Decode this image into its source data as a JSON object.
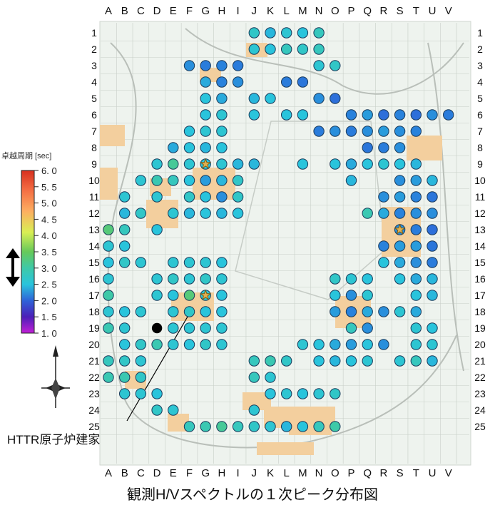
{
  "grid": {
    "columns": [
      "A",
      "B",
      "C",
      "D",
      "E",
      "F",
      "G",
      "H",
      "I",
      "J",
      "K",
      "L",
      "M",
      "N",
      "O",
      "P",
      "Q",
      "R",
      "S",
      "T",
      "U",
      "V"
    ],
    "rows": [
      "1",
      "2",
      "3",
      "4",
      "5",
      "6",
      "7",
      "8",
      "9",
      "10",
      "11",
      "12",
      "13",
      "14",
      "15",
      "16",
      "17",
      "18",
      "19",
      "20",
      "21",
      "22",
      "23",
      "24",
      "25"
    ]
  },
  "legend": {
    "title": "卓越周期 [sec]",
    "ticks": [
      "6. 0",
      "5. 5",
      "5. 0",
      "4. 5",
      "4. 0",
      "3. 5",
      "3. 0",
      "2. 5",
      "2. 0",
      "1. 5",
      "1. 0"
    ],
    "min": 1.0,
    "max": 6.0
  },
  "annotation": {
    "label": "HTTR原子炉建家"
  },
  "caption": "観測H/Vスペクトルの１次ピーク分布図",
  "colors": {
    "map_background": "#eef3ee",
    "grid_line": "#c8cfc8",
    "building": "#f3cf9e",
    "road": "#b9bfb9"
  },
  "icons": {
    "star": "star-icon",
    "compass": "north-arrow-icon",
    "range": "double-arrow-icon"
  },
  "chart_data": {
    "type": "scatter",
    "description_units": "grid column letter / row number; value = dominant period (sec)",
    "series": [
      {
        "values": [
          [
            "F",
            3,
            2.6
          ],
          [
            "G",
            3,
            2.4
          ],
          [
            "H",
            3,
            2.5
          ],
          [
            "I",
            3,
            2.4
          ],
          [
            "G",
            4,
            2.8
          ],
          [
            "H",
            4,
            2.5
          ],
          [
            "I",
            4,
            2.6
          ],
          [
            "J",
            1,
            3.2
          ],
          [
            "K",
            1,
            2.9
          ],
          [
            "L",
            1,
            3.1
          ],
          [
            "M",
            1,
            3.0
          ],
          [
            "N",
            1,
            3.3
          ],
          [
            "L",
            4,
            2.4
          ],
          [
            "M",
            4,
            2.3
          ],
          [
            "N",
            3,
            3.1
          ],
          [
            "N",
            2,
            3.3
          ],
          [
            "O",
            3,
            3.2
          ],
          [
            "G",
            5,
            3.0
          ],
          [
            "H",
            5,
            2.8
          ],
          [
            "J",
            5,
            2.9
          ],
          [
            "K",
            5,
            3.0
          ],
          [
            "N",
            5,
            2.6
          ],
          [
            "O",
            5,
            2.2
          ],
          [
            "P",
            6,
            2.5
          ],
          [
            "Q",
            6,
            2.7
          ],
          [
            "R",
            6,
            2.2
          ],
          [
            "S",
            6,
            2.5
          ],
          [
            "T",
            6,
            2.2
          ],
          [
            "U",
            6,
            2.6
          ],
          [
            "V",
            6,
            2.4
          ],
          [
            "G",
            6,
            3.0
          ],
          [
            "H",
            6,
            3.1
          ],
          [
            "J",
            6,
            3.0
          ],
          [
            "L",
            6,
            3.0
          ],
          [
            "M",
            6,
            3.0
          ],
          [
            "N",
            7,
            2.4
          ],
          [
            "O",
            7,
            2.6
          ],
          [
            "P",
            7,
            2.4
          ],
          [
            "Q",
            8,
            2.3
          ],
          [
            "R",
            8,
            2.4
          ],
          [
            "S",
            8,
            2.6
          ],
          [
            "F",
            7,
            3.0
          ],
          [
            "G",
            7,
            3.1
          ],
          [
            "H",
            7,
            3.1
          ],
          [
            "E",
            8,
            2.8
          ],
          [
            "F",
            8,
            3.0
          ],
          [
            "G",
            8,
            2.9
          ],
          [
            "H",
            8,
            3.0
          ],
          [
            "D",
            9,
            3.1
          ],
          [
            "E",
            9,
            3.6
          ],
          [
            "F",
            9,
            3.1
          ],
          [
            "G",
            9,
            3.0
          ],
          [
            "H",
            9,
            3.1
          ],
          [
            "I",
            9,
            2.9
          ],
          [
            "C",
            10,
            3.1
          ],
          [
            "D",
            10,
            3.4
          ],
          [
            "E",
            10,
            3.3
          ],
          [
            "F",
            10,
            3.0
          ],
          [
            "G",
            10,
            2.7
          ],
          [
            "H",
            10,
            2.9
          ],
          [
            "I",
            10,
            3.2
          ],
          [
            "B",
            11,
            3.1
          ],
          [
            "D",
            11,
            3.1
          ],
          [
            "F",
            11,
            3.2
          ],
          [
            "G",
            11,
            3.0
          ],
          [
            "H",
            11,
            2.6
          ],
          [
            "I",
            11,
            3.2
          ],
          [
            "B",
            12,
            2.9
          ],
          [
            "C",
            12,
            3.2
          ],
          [
            "E",
            12,
            3.1
          ],
          [
            "F",
            12,
            2.9
          ],
          [
            "G",
            12,
            3.0
          ],
          [
            "H",
            12,
            2.9
          ],
          [
            "I",
            12,
            3.0
          ],
          [
            "A",
            13,
            3.8
          ],
          [
            "B",
            13,
            3.3
          ],
          [
            "D",
            13,
            3.0
          ],
          [
            "A",
            14,
            3.1
          ],
          [
            "B",
            14,
            3.0
          ],
          [
            "A",
            15,
            3.0
          ],
          [
            "B",
            15,
            3.2
          ],
          [
            "C",
            15,
            3.1
          ],
          [
            "E",
            15,
            3.1
          ],
          [
            "F",
            15,
            3.1
          ],
          [
            "G",
            15,
            3.1
          ],
          [
            "H",
            15,
            3.0
          ],
          [
            "A",
            16,
            3.1
          ],
          [
            "D",
            16,
            3.1
          ],
          [
            "E",
            16,
            3.2
          ],
          [
            "F",
            16,
            3.1
          ],
          [
            "G",
            16,
            3.2
          ],
          [
            "H",
            16,
            3.1
          ],
          [
            "A",
            17,
            3.5
          ],
          [
            "D",
            17,
            3.1
          ],
          [
            "E",
            17,
            3.0
          ],
          [
            "F",
            17,
            3.8
          ],
          [
            "G",
            17,
            3.1
          ],
          [
            "H",
            17,
            3.0
          ],
          [
            "A",
            18,
            3.1
          ],
          [
            "B",
            18,
            3.0
          ],
          [
            "C",
            18,
            3.1
          ],
          [
            "E",
            18,
            3.1
          ],
          [
            "F",
            18,
            3.2
          ],
          [
            "G",
            18,
            3.0
          ],
          [
            "H",
            18,
            3.0
          ],
          [
            "A",
            19,
            3.4
          ],
          [
            "B",
            19,
            3.1
          ],
          [
            "E",
            19,
            3.1
          ],
          [
            "F",
            19,
            3.1
          ],
          [
            "G",
            19,
            3.1
          ],
          [
            "H",
            19,
            3.1
          ],
          [
            "B",
            20,
            3.0
          ],
          [
            "C",
            20,
            3.2
          ],
          [
            "D",
            20,
            3.4
          ],
          [
            "E",
            20,
            3.1
          ],
          [
            "F",
            20,
            3.0
          ],
          [
            "G",
            20,
            3.2
          ],
          [
            "H",
            20,
            3.1
          ],
          [
            "A",
            21,
            3.3
          ],
          [
            "B",
            21,
            3.2
          ],
          [
            "C",
            21,
            3.1
          ],
          [
            "A",
            22,
            3.4
          ],
          [
            "B",
            22,
            3.4
          ],
          [
            "C",
            22,
            3.2
          ],
          [
            "B",
            23,
            3.1
          ],
          [
            "C",
            23,
            3.1
          ],
          [
            "D",
            23,
            3.0
          ],
          [
            "D",
            24,
            3.2
          ],
          [
            "E",
            24,
            3.1
          ],
          [
            "F",
            25,
            3.3
          ],
          [
            "G",
            25,
            3.4
          ],
          [
            "H",
            25,
            3.6
          ],
          [
            "I",
            25,
            3.3
          ],
          [
            "J",
            25,
            3.2
          ],
          [
            "K",
            25,
            3.1
          ],
          [
            "L",
            25,
            2.9
          ],
          [
            "M",
            25,
            3.0
          ],
          [
            "N",
            25,
            3.3
          ],
          [
            "O",
            25,
            3.5
          ],
          [
            "J",
            21,
            3.3
          ],
          [
            "K",
            21,
            3.4
          ],
          [
            "L",
            21,
            3.2
          ],
          [
            "J",
            22,
            3.3
          ],
          [
            "K",
            22,
            3.1
          ],
          [
            "K",
            23,
            3.0
          ],
          [
            "L",
            23,
            3.1
          ],
          [
            "M",
            23,
            3.0
          ],
          [
            "N",
            23,
            3.1
          ],
          [
            "O",
            23,
            3.2
          ],
          [
            "J",
            24,
            3.1
          ],
          [
            "M",
            20,
            3.1
          ],
          [
            "N",
            20,
            3.0
          ],
          [
            "O",
            20,
            2.8
          ],
          [
            "P",
            20,
            2.7
          ],
          [
            "Q",
            20,
            3.0
          ],
          [
            "R",
            20,
            2.6
          ],
          [
            "N",
            21,
            3.0
          ],
          [
            "O",
            21,
            2.9
          ],
          [
            "P",
            21,
            3.0
          ],
          [
            "Q",
            21,
            3.1
          ],
          [
            "S",
            21,
            3.1
          ],
          [
            "O",
            16,
            3.2
          ],
          [
            "P",
            16,
            3.1
          ],
          [
            "Q",
            16,
            3.0
          ],
          [
            "O",
            17,
            3.0
          ],
          [
            "P",
            17,
            2.6
          ],
          [
            "Q",
            17,
            3.1
          ],
          [
            "O",
            18,
            2.7
          ],
          [
            "P",
            18,
            2.5
          ],
          [
            "Q",
            18,
            2.8
          ],
          [
            "R",
            18,
            2.6
          ],
          [
            "P",
            19,
            3.3
          ],
          [
            "Q",
            19,
            2.6
          ],
          [
            "O",
            9,
            3.0
          ],
          [
            "P",
            9,
            2.8
          ],
          [
            "Q",
            9,
            3.0
          ],
          [
            "R",
            9,
            3.1
          ],
          [
            "S",
            9,
            3.0
          ],
          [
            "T",
            9,
            2.9
          ],
          [
            "P",
            10,
            2.9
          ],
          [
            "S",
            10,
            2.6
          ],
          [
            "T",
            10,
            2.7
          ],
          [
            "U",
            10,
            2.9
          ],
          [
            "R",
            11,
            2.6
          ],
          [
            "S",
            11,
            2.7
          ],
          [
            "T",
            11,
            2.5
          ],
          [
            "U",
            11,
            2.3
          ],
          [
            "Q",
            12,
            3.4
          ],
          [
            "R",
            12,
            2.8
          ],
          [
            "S",
            12,
            2.5
          ],
          [
            "T",
            12,
            2.6
          ],
          [
            "U",
            12,
            2.6
          ],
          [
            "S",
            13,
            2.6
          ],
          [
            "T",
            13,
            2.4
          ],
          [
            "U",
            13,
            2.2
          ],
          [
            "R",
            14,
            2.5
          ],
          [
            "S",
            14,
            2.7
          ],
          [
            "T",
            14,
            2.7
          ],
          [
            "U",
            14,
            2.3
          ],
          [
            "R",
            15,
            3.0
          ],
          [
            "S",
            15,
            2.8
          ],
          [
            "T",
            15,
            2.6
          ],
          [
            "U",
            15,
            2.4
          ],
          [
            "S",
            16,
            3.0
          ],
          [
            "T",
            16,
            2.8
          ],
          [
            "U",
            16,
            2.9
          ],
          [
            "T",
            17,
            3.0
          ],
          [
            "U",
            17,
            2.9
          ],
          [
            "S",
            18,
            3.1
          ],
          [
            "T",
            18,
            2.8
          ],
          [
            "T",
            19,
            3.1
          ],
          [
            "U",
            19,
            3.0
          ],
          [
            "T",
            20,
            3.1
          ],
          [
            "U",
            20,
            3.1
          ],
          [
            "T",
            21,
            3.3
          ],
          [
            "U",
            21,
            2.9
          ],
          [
            "Q",
            7,
            2.6
          ],
          [
            "R",
            7,
            2.7
          ],
          [
            "S",
            7,
            2.6
          ],
          [
            "T",
            7,
            2.5
          ],
          [
            "J",
            9,
            2.9
          ],
          [
            "M",
            9,
            3.0
          ],
          [
            "J",
            2,
            3.1
          ],
          [
            "K",
            2,
            3.0
          ],
          [
            "L",
            2,
            3.3
          ],
          [
            "M",
            2,
            3.2
          ]
        ]
      }
    ],
    "special_points": [
      {
        "col": "D",
        "row": 19,
        "kind": "black-marker"
      },
      {
        "col": "G",
        "row": 9,
        "kind": "star"
      },
      {
        "col": "G",
        "row": 17,
        "kind": "star"
      },
      {
        "col": "S",
        "row": 13,
        "kind": "star"
      }
    ]
  }
}
